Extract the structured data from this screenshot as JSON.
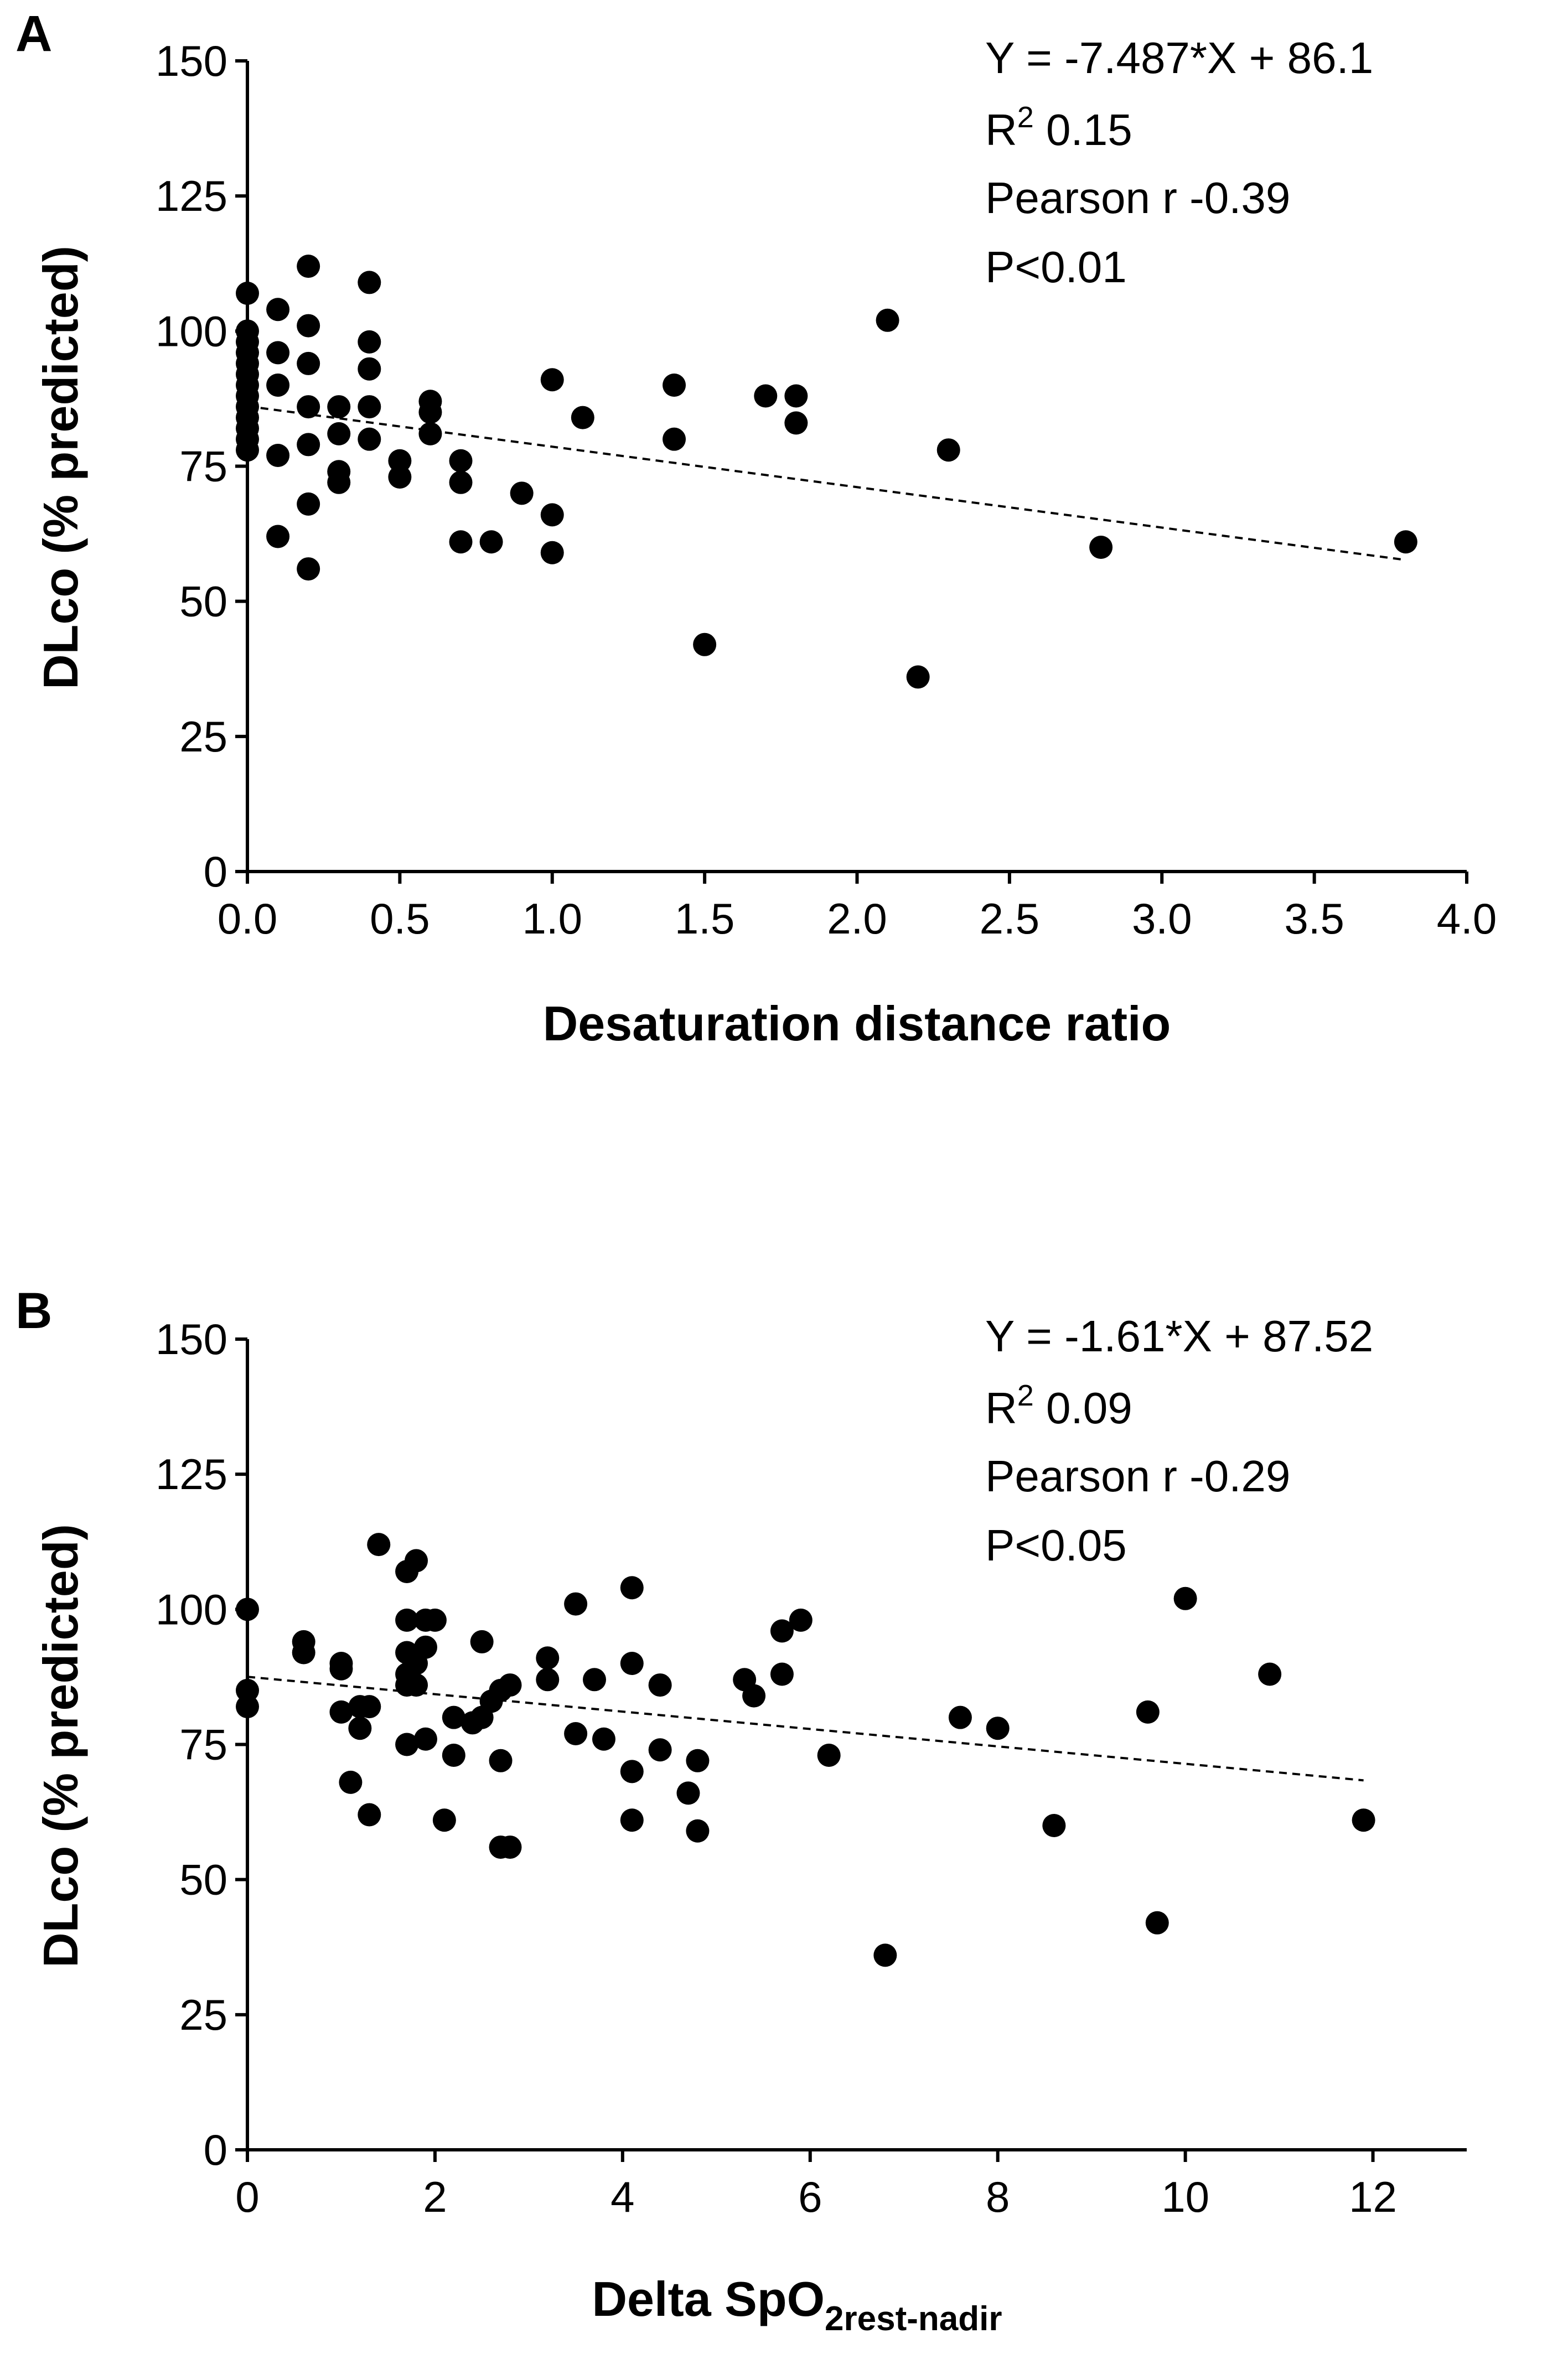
{
  "chart_data": [
    {
      "type": "scatter",
      "panel_label": "A",
      "xlabel": "Desaturation distance ratio",
      "xlabel_sub": "",
      "ylabel": "DLco (% predicted)",
      "xlim": [
        0,
        4
      ],
      "ylim": [
        0,
        150
      ],
      "xticks": [
        0,
        0.5,
        1,
        1.5,
        2,
        2.5,
        3,
        3.5,
        4
      ],
      "xtick_labels": [
        "0.0",
        "0.5",
        "1.0",
        "1.5",
        "2.0",
        "2.5",
        "3.0",
        "3.5",
        "4.0"
      ],
      "yticks": [
        0,
        25,
        50,
        75,
        100,
        125,
        150
      ],
      "ytick_labels": [
        "0",
        "25",
        "50",
        "75",
        "100",
        "125",
        "150"
      ],
      "stats": {
        "equation": "Y = -7.487*X + 86.1",
        "r2_prefix": "R",
        "r2_sup": "2",
        "r2_value": " 0.15",
        "pearson": "Pearson r -0.39",
        "p": "P<0.01"
      },
      "trendline": {
        "slope": -7.487,
        "intercept": 86.1,
        "x_range": [
          0,
          3.8
        ]
      },
      "points": [
        [
          0,
          107
        ],
        [
          0,
          100
        ],
        [
          0,
          98
        ],
        [
          0,
          96
        ],
        [
          0,
          94
        ],
        [
          0,
          92
        ],
        [
          0,
          90
        ],
        [
          0,
          88
        ],
        [
          0,
          86
        ],
        [
          0,
          84
        ],
        [
          0,
          82
        ],
        [
          0,
          80
        ],
        [
          0,
          78
        ],
        [
          0.1,
          104
        ],
        [
          0.1,
          96
        ],
        [
          0.1,
          90
        ],
        [
          0.1,
          77
        ],
        [
          0.1,
          62
        ],
        [
          0.2,
          112
        ],
        [
          0.2,
          101
        ],
        [
          0.2,
          94
        ],
        [
          0.2,
          86
        ],
        [
          0.2,
          79
        ],
        [
          0.2,
          68
        ],
        [
          0.2,
          56
        ],
        [
          0.3,
          86
        ],
        [
          0.3,
          81
        ],
        [
          0.3,
          74
        ],
        [
          0.3,
          72
        ],
        [
          0.4,
          109
        ],
        [
          0.4,
          98
        ],
        [
          0.4,
          93
        ],
        [
          0.4,
          86
        ],
        [
          0.4,
          80
        ],
        [
          0.5,
          76
        ],
        [
          0.5,
          73
        ],
        [
          0.6,
          87
        ],
        [
          0.6,
          85
        ],
        [
          0.6,
          81
        ],
        [
          0.7,
          76
        ],
        [
          0.7,
          72
        ],
        [
          0.7,
          61
        ],
        [
          0.8,
          61
        ],
        [
          0.9,
          70
        ],
        [
          1.0,
          91
        ],
        [
          1.0,
          66
        ],
        [
          1.0,
          59
        ],
        [
          1.1,
          84
        ],
        [
          1.4,
          90
        ],
        [
          1.4,
          80
        ],
        [
          1.5,
          42
        ],
        [
          1.7,
          88
        ],
        [
          1.8,
          88
        ],
        [
          1.8,
          83
        ],
        [
          2.1,
          102
        ],
        [
          2.2,
          36
        ],
        [
          2.3,
          78
        ],
        [
          2.8,
          60
        ],
        [
          3.8,
          61
        ]
      ]
    },
    {
      "type": "scatter",
      "panel_label": "B",
      "xlabel": "Delta SpO",
      "xlabel_sub": "2rest-nadir",
      "ylabel": "DLco (% predicted)",
      "xlim": [
        0,
        13
      ],
      "ylim": [
        0,
        150
      ],
      "xticks": [
        0,
        2,
        4,
        6,
        8,
        10,
        12
      ],
      "xtick_labels": [
        "0",
        "2",
        "4",
        "6",
        "8",
        "10",
        "12"
      ],
      "yticks": [
        0,
        25,
        50,
        75,
        100,
        125,
        150
      ],
      "ytick_labels": [
        "0",
        "25",
        "50",
        "75",
        "100",
        "125",
        "150"
      ],
      "stats": {
        "equation": "Y = -1.61*X + 87.52",
        "r2_prefix": "R",
        "r2_sup": "2",
        "r2_value": " 0.09",
        "pearson": "Pearson r -0.29",
        "p": "P<0.05"
      },
      "trendline": {
        "slope": -1.61,
        "intercept": 87.52,
        "x_range": [
          0,
          11.9
        ]
      },
      "points": [
        [
          0,
          100
        ],
        [
          0,
          85
        ],
        [
          0,
          82
        ],
        [
          0.6,
          94
        ],
        [
          0.6,
          92
        ],
        [
          1.0,
          90
        ],
        [
          1.0,
          89
        ],
        [
          1.0,
          81
        ],
        [
          1.1,
          68
        ],
        [
          1.2,
          82
        ],
        [
          1.2,
          78
        ],
        [
          1.3,
          82
        ],
        [
          1.3,
          62
        ],
        [
          1.4,
          112
        ],
        [
          1.7,
          107
        ],
        [
          1.7,
          98
        ],
        [
          1.7,
          92
        ],
        [
          1.7,
          88
        ],
        [
          1.7,
          86
        ],
        [
          1.7,
          75
        ],
        [
          1.8,
          109
        ],
        [
          1.8,
          90
        ],
        [
          1.8,
          86
        ],
        [
          1.9,
          98
        ],
        [
          1.9,
          93
        ],
        [
          1.9,
          76
        ],
        [
          2.0,
          98
        ],
        [
          2.1,
          61
        ],
        [
          2.2,
          80
        ],
        [
          2.2,
          73
        ],
        [
          2.4,
          79
        ],
        [
          2.5,
          94
        ],
        [
          2.5,
          80
        ],
        [
          2.6,
          83
        ],
        [
          2.7,
          85
        ],
        [
          2.7,
          72
        ],
        [
          2.7,
          56
        ],
        [
          2.8,
          86
        ],
        [
          2.8,
          56
        ],
        [
          3.2,
          91
        ],
        [
          3.2,
          87
        ],
        [
          3.5,
          101
        ],
        [
          3.5,
          77
        ],
        [
          3.7,
          87
        ],
        [
          3.8,
          76
        ],
        [
          4.1,
          104
        ],
        [
          4.1,
          90
        ],
        [
          4.1,
          70
        ],
        [
          4.1,
          61
        ],
        [
          4.4,
          86
        ],
        [
          4.4,
          74
        ],
        [
          4.7,
          66
        ],
        [
          4.8,
          72
        ],
        [
          4.8,
          59
        ],
        [
          5.3,
          87
        ],
        [
          5.4,
          84
        ],
        [
          5.7,
          96
        ],
        [
          5.7,
          88
        ],
        [
          5.9,
          98
        ],
        [
          6.2,
          73
        ],
        [
          6.8,
          36
        ],
        [
          7.6,
          80
        ],
        [
          8.0,
          78
        ],
        [
          8.6,
          60
        ],
        [
          9.6,
          81
        ],
        [
          9.7,
          42
        ],
        [
          10.0,
          102
        ],
        [
          10.9,
          88
        ],
        [
          11.9,
          61
        ]
      ]
    }
  ]
}
